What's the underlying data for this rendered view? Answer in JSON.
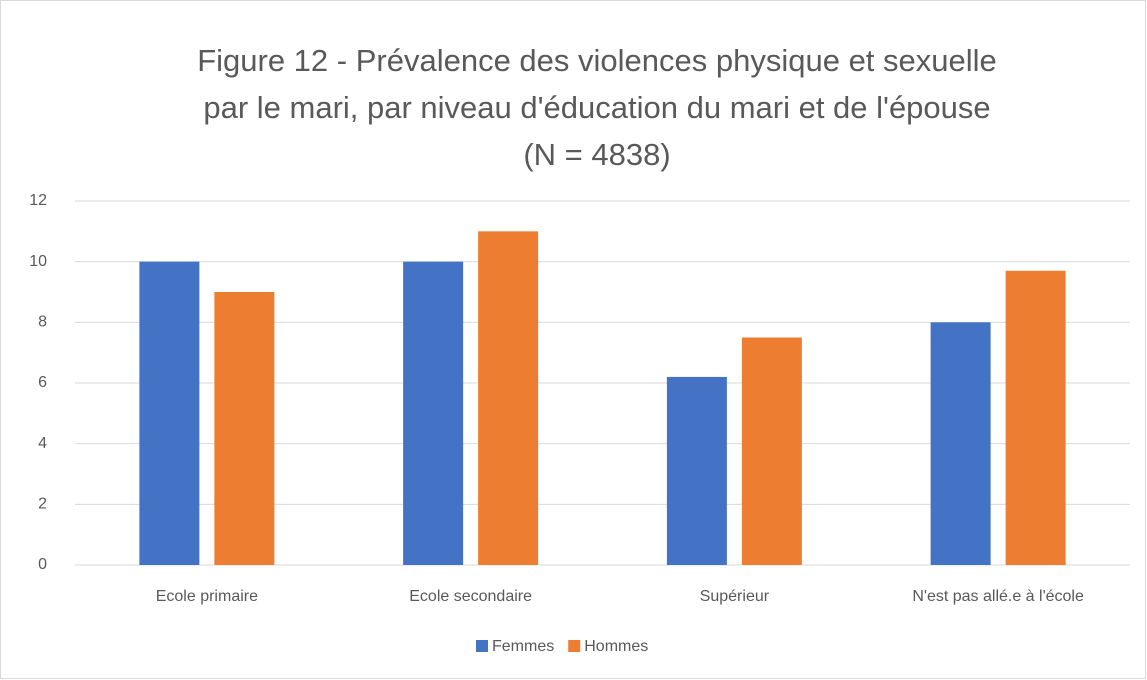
{
  "chart_data": {
    "type": "bar",
    "title": [
      "Figure 12 - Prévalence des violences physique et sexuelle",
      "par le mari, par niveau d'éducation du mari et de l'épouse",
      "(N = 4838)"
    ],
    "categories": [
      "Ecole primaire",
      "Ecole secondaire",
      "Supérieur",
      "N'est pas allé.e à l'école"
    ],
    "series": [
      {
        "name": "Femmes",
        "color": "#4472c4",
        "values": [
          10,
          10,
          6.2,
          8
        ]
      },
      {
        "name": "Hommes",
        "color": "#ed7d31",
        "values": [
          9,
          11,
          7.5,
          9.7
        ]
      }
    ],
    "ylim": [
      0,
      12
    ],
    "yticks": [
      0,
      2,
      4,
      6,
      8,
      10,
      12
    ],
    "grid": true,
    "legend": "bottom"
  }
}
